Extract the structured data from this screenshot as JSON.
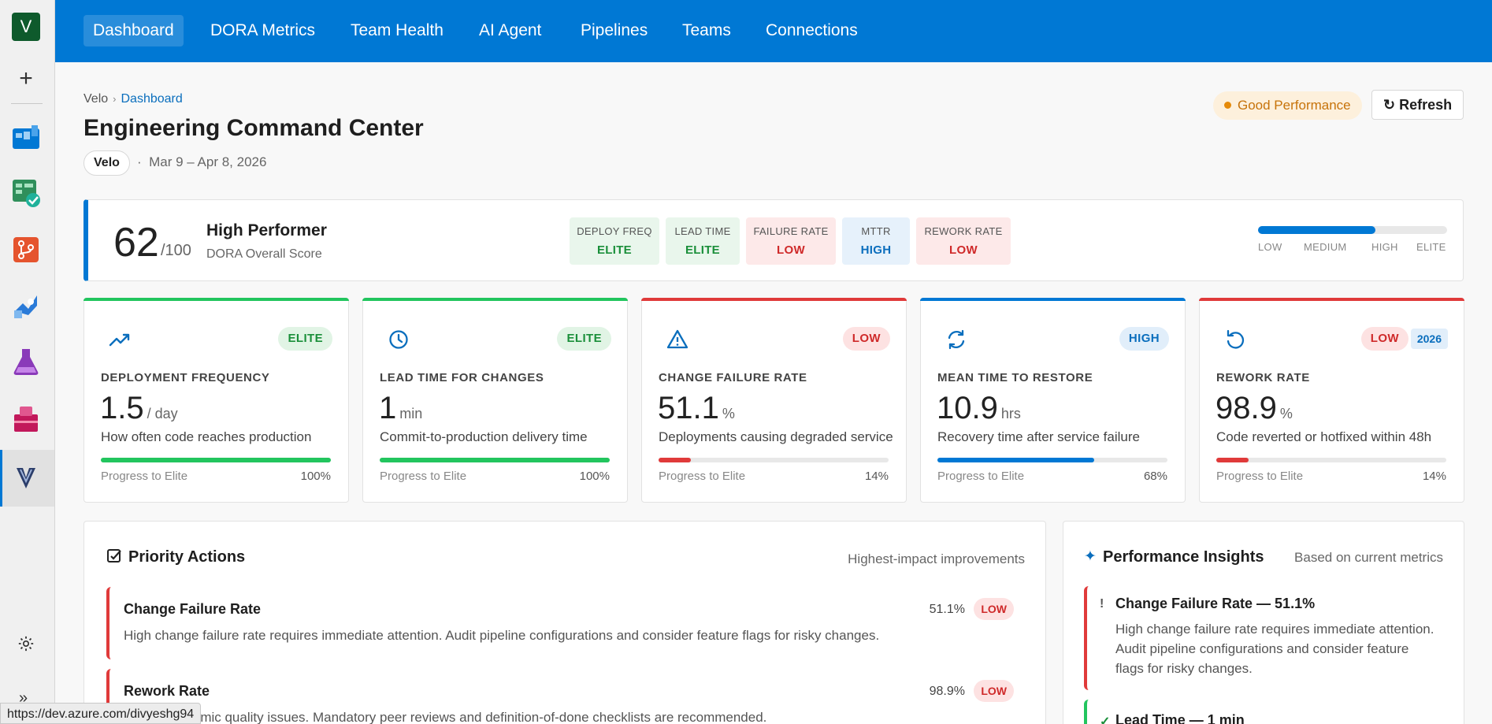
{
  "rail": {
    "avatar": "V",
    "icons": [
      "boards-icon",
      "test-plans-icon",
      "repos-icon",
      "pipelines-icon",
      "test-icon",
      "artifacts-icon",
      "velo-icon"
    ]
  },
  "topnav": [
    {
      "label": "Dashboard",
      "active": true
    },
    {
      "label": "DORA Metrics"
    },
    {
      "label": "Team Health"
    },
    {
      "label": "AI Agent"
    },
    {
      "label": "Pipelines"
    },
    {
      "label": "Teams"
    },
    {
      "label": "Connections"
    }
  ],
  "breadcrumb": {
    "root": "Velo",
    "sep": "›",
    "current": "Dashboard"
  },
  "header": {
    "title": "Engineering Command Center",
    "org": "Velo",
    "date_sep": "·",
    "date_range": "Mar 9 – Apr 8, 2026",
    "status": "Good Performance",
    "refresh_icon": "↻",
    "refresh": "Refresh"
  },
  "summary": {
    "score": "62",
    "score_max": "/100",
    "tier": "High Performer",
    "tier_sub": "DORA Overall Score",
    "chips": [
      {
        "label": "DEPLOY FREQ",
        "value": "ELITE",
        "tone": "g"
      },
      {
        "label": "LEAD TIME",
        "value": "ELITE",
        "tone": "g"
      },
      {
        "label": "FAILURE RATE",
        "value": "LOW",
        "tone": "r"
      },
      {
        "label": "MTTR",
        "value": "HIGH",
        "tone": "b"
      },
      {
        "label": "REWORK RATE",
        "value": "LOW",
        "tone": "r"
      }
    ],
    "scale": {
      "fill_fraction": 0.62,
      "labels": [
        "LOW",
        "MEDIUM",
        "HIGH",
        "ELITE"
      ]
    }
  },
  "metrics": [
    {
      "title": "DEPLOYMENT FREQUENCY",
      "value": "1.5",
      "unit": "/ day",
      "desc": "How often code reaches production",
      "badge": "ELITE",
      "tone": "g",
      "icon": "trending-up-icon",
      "progress_label": "Progress to Elite",
      "progress": "100%",
      "progress_fraction": 1.0,
      "color": "#22c55e"
    },
    {
      "title": "LEAD TIME FOR CHANGES",
      "value": "1",
      "unit": "min",
      "desc": "Commit-to-production delivery time",
      "badge": "ELITE",
      "tone": "g",
      "icon": "clock-icon",
      "progress_label": "Progress to Elite",
      "progress": "100%",
      "progress_fraction": 1.0,
      "color": "#22c55e"
    },
    {
      "title": "CHANGE FAILURE RATE",
      "value": "51.1",
      "unit": "%",
      "desc": "Deployments causing degraded service",
      "badge": "LOW",
      "tone": "r",
      "icon": "warning-icon",
      "progress_label": "Progress to Elite",
      "progress": "14%",
      "progress_fraction": 0.14,
      "color": "#e03a3a"
    },
    {
      "title": "MEAN TIME TO RESTORE",
      "value": "10.9",
      "unit": "hrs",
      "desc": "Recovery time after service failure",
      "badge": "HIGH",
      "tone": "b",
      "icon": "sync-icon",
      "progress_label": "Progress to Elite",
      "progress": "68%",
      "progress_fraction": 0.68,
      "color": "#0078d4"
    },
    {
      "title": "REWORK RATE",
      "value": "98.9",
      "unit": "%",
      "desc": "Code reverted or hotfixed within 48h",
      "badge": "LOW",
      "tone": "r",
      "icon": "undo-icon",
      "progress_label": "Progress to Elite",
      "progress": "14%",
      "progress_fraction": 0.14,
      "color": "#e03a3a",
      "extra_badge": "2026"
    }
  ],
  "priority": {
    "title": "Priority Actions",
    "subtitle": "Highest-impact improvements",
    "items": [
      {
        "title": "Change Failure Rate",
        "desc": "High change failure rate requires immediate attention. Audit pipeline configurations and consider feature flags for risky changes.",
        "value": "51.1%",
        "badge": "LOW"
      },
      {
        "title": "Rework Rate",
        "desc": "signals systemic quality issues. Mandatory peer reviews and definition-of-done checklists are recommended.",
        "value": "98.9%",
        "badge": "LOW"
      }
    ]
  },
  "insights": {
    "title": "Performance Insights",
    "subtitle": "Based on current metrics",
    "items": [
      {
        "mark": "!",
        "title": "Change Failure Rate — 51.1%",
        "desc": "High change failure rate requires immediate attention. Audit pipeline configurations and consider feature flags for risky changes.",
        "color": "#e03a3a"
      },
      {
        "mark": "✓",
        "title": "Lead Time — 1 min",
        "desc": "",
        "color": "#22c55e"
      }
    ]
  },
  "status_url": "https://dev.azure.com/divyeshg94",
  "colors": {
    "accent": "#0078d4",
    "good": "#22c55e",
    "bad": "#e03a3a",
    "warn": "#e58a0a"
  }
}
